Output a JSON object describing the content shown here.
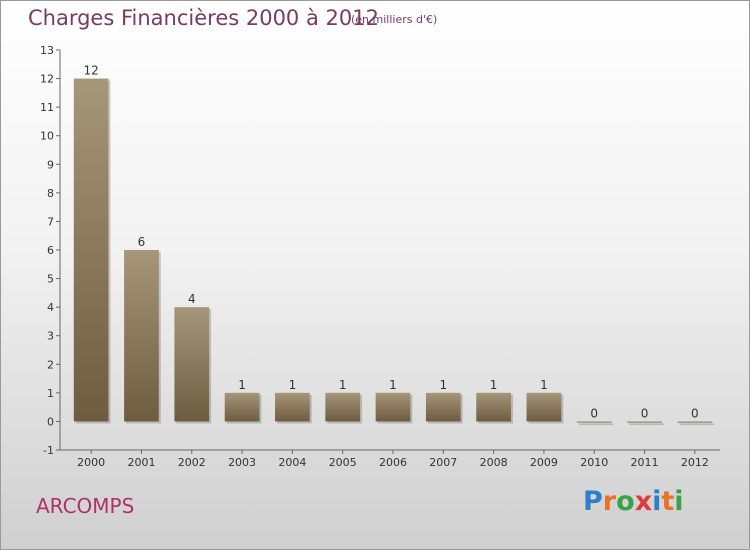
{
  "header": {
    "title": "Charges Financières 2000 à 2012",
    "subtitle": "(en milliers d'€)"
  },
  "footer": {
    "commune": "ARCOMPS",
    "logo_letters": [
      "P",
      "r",
      "o",
      "x",
      "i",
      "t",
      "i"
    ],
    "logo_colors": [
      "#2f7fc8",
      "#e8722a",
      "#3aa14a",
      "#e03a3a",
      "#2f7fc8",
      "#e8722a",
      "#3aa14a"
    ]
  },
  "colors": {
    "bar_light": "#a6967a",
    "bar_dark": "#6e5c3e",
    "title": "#7a3a62",
    "commune": "#b0306a"
  },
  "chart_data": {
    "type": "bar",
    "title": "Charges Financières 2000 à 2012",
    "subtitle": "(en milliers d'€)",
    "categories": [
      "2000",
      "2001",
      "2002",
      "2003",
      "2004",
      "2005",
      "2006",
      "2007",
      "2008",
      "2009",
      "2010",
      "2011",
      "2012"
    ],
    "values": [
      12,
      6,
      4,
      1,
      1,
      1,
      1,
      1,
      1,
      1,
      0,
      0,
      0
    ],
    "data_labels": [
      "12",
      "6",
      "4",
      "1",
      "1",
      "1",
      "1",
      "1",
      "1",
      "1",
      "0",
      "0",
      "0"
    ],
    "y_ticks": [
      -1,
      0,
      1,
      2,
      3,
      4,
      5,
      6,
      7,
      8,
      9,
      10,
      11,
      12,
      13
    ],
    "ylim": [
      -1,
      13
    ],
    "grid": false,
    "legend": "none"
  }
}
